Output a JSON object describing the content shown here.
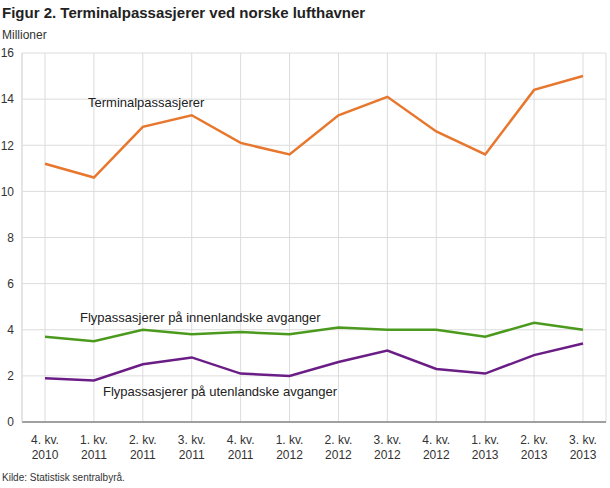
{
  "chart_data": {
    "type": "line",
    "title": "Figur 2. Terminalpassasjerer ved norske lufthavner",
    "y_label": "Millioner",
    "source": "Kilde: Statistisk sentralbyrå.",
    "categories": [
      "4. kv. 2010",
      "1. kv. 2011",
      "2. kv. 2011",
      "3. kv. 2011",
      "4. kv. 2011",
      "1. kv. 2012",
      "2. kv. 2012",
      "3. kv. 2012",
      "4. kv. 2012",
      "1. kv. 2013",
      "2. kv. 2013",
      "3. kv. 2013"
    ],
    "series": [
      {
        "name": "Terminalpassasjerer",
        "color": "#e8772e",
        "values": [
          11.2,
          10.6,
          12.8,
          13.3,
          12.1,
          11.6,
          13.3,
          14.1,
          12.6,
          11.6,
          14.4,
          15.0
        ]
      },
      {
        "name": "Flypassasjerer på innenlandske avganger",
        "color": "#4b9a1e",
        "values": [
          3.7,
          3.5,
          4.0,
          3.8,
          3.9,
          3.8,
          4.1,
          4.0,
          4.0,
          3.7,
          4.3,
          4.0
        ]
      },
      {
        "name": "Flypassasjerer på utenlandske avganger",
        "color": "#6b1d86",
        "values": [
          1.9,
          1.8,
          2.5,
          2.8,
          2.1,
          2.0,
          2.6,
          3.1,
          2.3,
          2.1,
          2.9,
          3.4
        ]
      }
    ],
    "ylim": [
      0,
      16
    ],
    "yticks": [
      0,
      2,
      4,
      6,
      8,
      10,
      12,
      14,
      16
    ],
    "grid": true
  }
}
